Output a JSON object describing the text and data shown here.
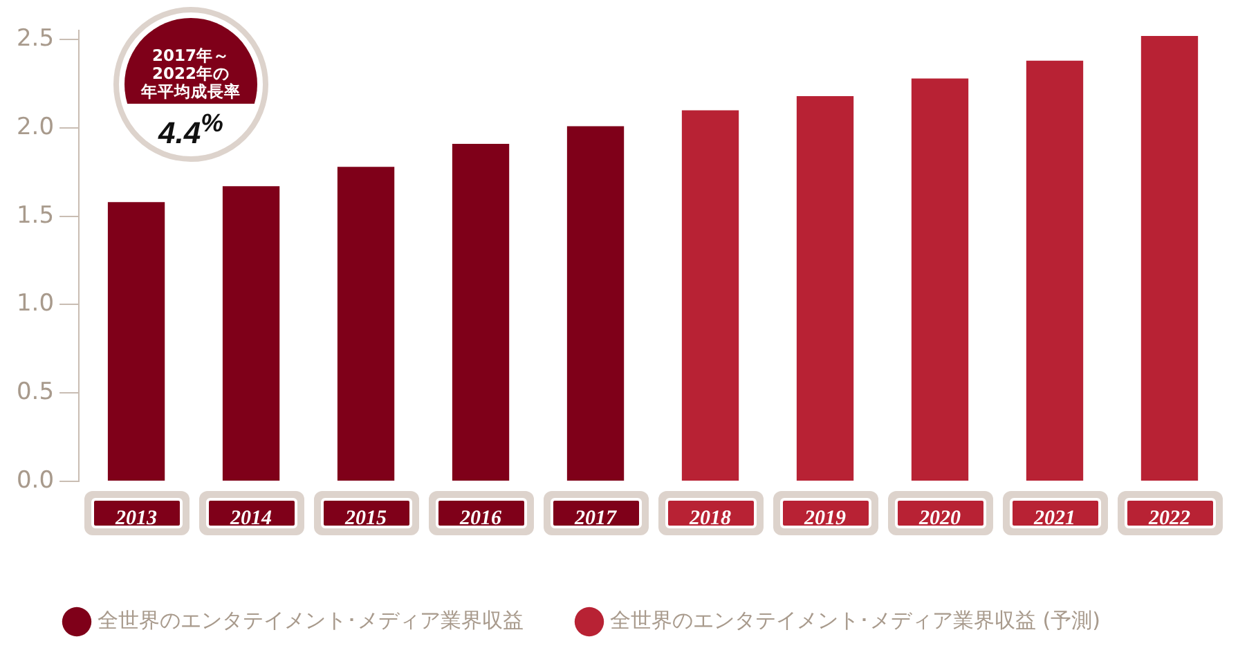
{
  "chart_data": {
    "type": "bar",
    "categories": [
      "2013",
      "2014",
      "2015",
      "2016",
      "2017",
      "2018",
      "2019",
      "2020",
      "2021",
      "2022"
    ],
    "series": [
      {
        "name": "全世界のエンタテイメント･メディア業界収益",
        "color": "#7f0019",
        "values": [
          1.58,
          1.67,
          1.78,
          1.91,
          2.01,
          null,
          null,
          null,
          null,
          null
        ]
      },
      {
        "name": "全世界のエンタテイメント･メディア業界収益 (予測)",
        "color": "#b82234",
        "values": [
          null,
          null,
          null,
          null,
          null,
          2.1,
          2.18,
          2.28,
          2.38,
          2.52
        ]
      }
    ],
    "ylim": [
      0,
      2.55
    ],
    "yticks": [
      {
        "value": 0,
        "label": "0.0"
      },
      {
        "value": 0.5,
        "label": "0.5"
      },
      {
        "value": 1,
        "label": "1.0"
      },
      {
        "value": 1.5,
        "label": "1.5"
      },
      {
        "value": 2,
        "label": "2.0"
      },
      {
        "value": 2.5,
        "label": "2.5"
      }
    ],
    "grid": false,
    "legend": "bottom",
    "annotations": [
      "2017年～",
      "2022年の",
      "年平均成長率",
      "4.4$^{%}$"
    ]
  }
}
